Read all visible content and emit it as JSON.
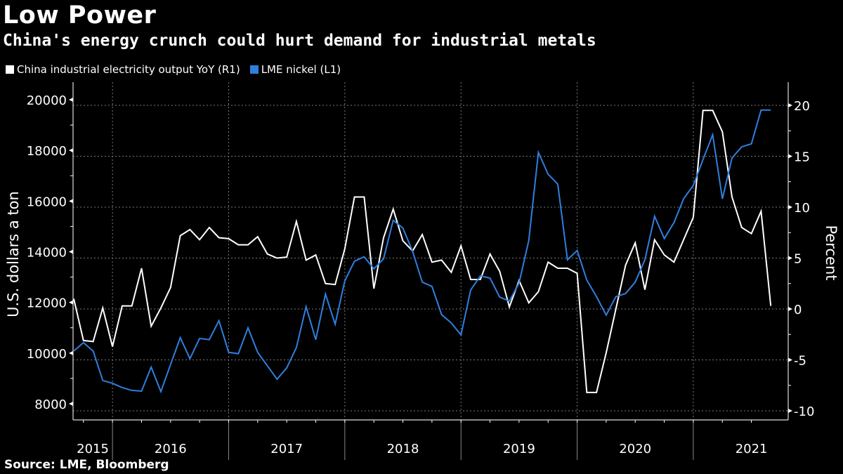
{
  "title": "Low Power",
  "subtitle": "China's energy crunch could hurt demand for industrial metals",
  "source": "Source: LME, Bloomberg",
  "legend": [
    {
      "label": "China industrial electricity output YoY (R1)",
      "color": "#ffffff"
    },
    {
      "label": "LME nickel (L1)",
      "color": "#2f7fde"
    }
  ],
  "chart_data": {
    "type": "line",
    "title": "Low Power",
    "subtitle": "China's energy crunch could hurt demand for industrial metals",
    "x_start": "2015-09",
    "x_end": "2021-09",
    "x_frequency": "monthly",
    "x_tick_labels": [
      "2015",
      "2016",
      "2017",
      "2018",
      "2019",
      "2020",
      "2021"
    ],
    "left_axis": {
      "label": "U.S. dollars a ton",
      "ylim": [
        7400,
        20700
      ],
      "ticks": [
        8000,
        10000,
        12000,
        14000,
        16000,
        18000,
        20000
      ]
    },
    "right_axis": {
      "label": "Percent",
      "ylim": [
        -10.9,
        21.1
      ],
      "ticks": [
        -10,
        -5,
        0,
        5,
        10,
        15,
        20
      ]
    },
    "grid": true,
    "legend_position": "top-left",
    "series": [
      {
        "name": "China industrial electricity output YoY (R1)",
        "axis": "right",
        "color": "#ffffff",
        "values": [
          1.0,
          -3.1,
          -3.2,
          0.1,
          -3.7,
          0.3,
          0.3,
          4.0,
          -1.7,
          0.1,
          2.1,
          7.2,
          7.8,
          6.8,
          8.0,
          7.0,
          6.9,
          6.3,
          6.3,
          7.1,
          5.4,
          5.0,
          5.1,
          8.6,
          4.8,
          5.3,
          2.5,
          2.4,
          5.9,
          11.0,
          11.0,
          2.0,
          7.0,
          9.8,
          6.7,
          5.7,
          7.3,
          4.6,
          4.8,
          3.6,
          6.2,
          2.9,
          2.9,
          5.4,
          3.7,
          0.2,
          2.8,
          0.6,
          1.7,
          4.6,
          4.0,
          4.0,
          3.5,
          -8.2,
          -8.2,
          -4.3,
          0.0,
          4.3,
          6.5,
          1.9,
          6.8,
          5.3,
          4.6,
          6.8,
          9.0,
          19.5,
          19.5,
          17.4,
          11.0,
          8.0,
          7.4,
          9.6,
          0.3
        ]
      },
      {
        "name": "LME nickel (L1)",
        "axis": "left",
        "color": "#2f7fde",
        "values": [
          10080,
          10415,
          10080,
          8920,
          8810,
          8640,
          8530,
          8500,
          9450,
          8480,
          9550,
          10610,
          9780,
          10580,
          10530,
          11280,
          10030,
          9980,
          11000,
          10030,
          9500,
          8970,
          9420,
          10220,
          11830,
          10530,
          12330,
          11140,
          12850,
          13630,
          13800,
          13330,
          13720,
          15240,
          14930,
          14020,
          12800,
          12630,
          11520,
          11190,
          10720,
          12490,
          13050,
          12960,
          12210,
          12050,
          12770,
          14440,
          17920,
          17060,
          16670,
          13680,
          14050,
          12880,
          12230,
          11500,
          12230,
          12350,
          12800,
          13680,
          15400,
          14520,
          15150,
          16090,
          16620,
          17640,
          18620,
          16090,
          17700,
          18140,
          18260,
          19590,
          19590
        ]
      }
    ]
  }
}
